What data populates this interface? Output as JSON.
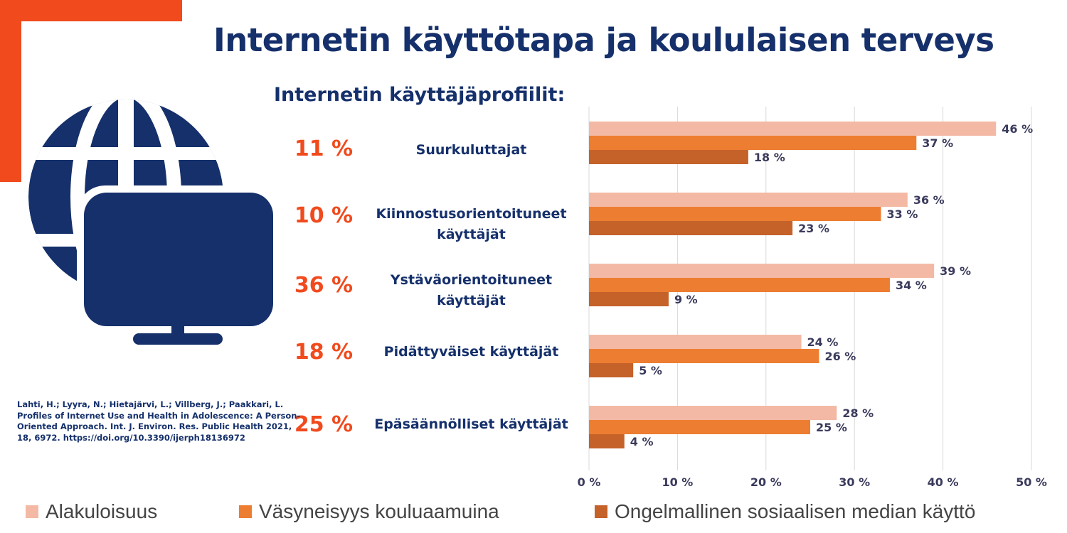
{
  "title": "Internetin käyttötapa ja koululaisen terveys",
  "subtitle": "Internetin käyttäjäprofiilit:",
  "profiles": [
    {
      "share": "11 %",
      "name": "Suurkuluttajat"
    },
    {
      "share": "10 %",
      "name": "Kiinnostusorientoituneet käyttäjät"
    },
    {
      "share": "36 %",
      "name": "Ystäväorientoituneet käyttäjät"
    },
    {
      "share": "18 %",
      "name": "Pidättyväiset käyttäjät"
    },
    {
      "share": "25 %",
      "name": "Epäsäännölliset käyttäjät"
    }
  ],
  "citation": "Lahti, H.; Lyyra, N.; Hietajärvi, L.; Villberg, J.; Paakkari, L. Profiles of Internet Use and Health in Adolescence: A Person-Oriented Approach. Int. J. Environ. Res. Public Health 2021, 18, 6972. https://doi.org/10.3390/ijerph18136972",
  "icon": "globe-monitor-icon",
  "colors": {
    "accent": "#f04a1d",
    "navy": "#15306b",
    "series1": "#f4b9a4",
    "series2": "#ed7d31",
    "series3": "#c4622a"
  },
  "legend": [
    {
      "label": "Alakuloisuus",
      "color": "#f4b9a4"
    },
    {
      "label": "Väsyneisyys kouluaamuina",
      "color": "#ed7d31"
    },
    {
      "label": "Ongelmallinen sosiaalisen median käyttö",
      "color": "#c4622a"
    }
  ],
  "chart_data": {
    "type": "bar",
    "orientation": "horizontal",
    "categories": [
      "Suurkuluttajat",
      "Kiinnostusorientoituneet käyttäjät",
      "Ystäväorientoituneet käyttäjät",
      "Pidättyväiset käyttäjät",
      "Epäsäännölliset käyttäjät"
    ],
    "series": [
      {
        "name": "Alakuloisuus",
        "values": [
          46,
          36,
          39,
          24,
          28
        ],
        "color": "#f4b9a4"
      },
      {
        "name": "Väsyneisyys kouluaamuina",
        "values": [
          37,
          33,
          34,
          26,
          25
        ],
        "color": "#ed7d31"
      },
      {
        "name": "Ongelmallinen sosiaalisen median käyttö",
        "values": [
          18,
          23,
          9,
          5,
          4
        ],
        "color": "#c4622a"
      }
    ],
    "xlim": [
      0,
      50
    ],
    "ticks": [
      0,
      10,
      20,
      30,
      40,
      50
    ],
    "tick_labels": [
      "0 %",
      "10 %",
      "20 %",
      "30 %",
      "40 %",
      "50 %"
    ],
    "value_suffix": " %",
    "grid": true,
    "legend_position": "bottom"
  }
}
